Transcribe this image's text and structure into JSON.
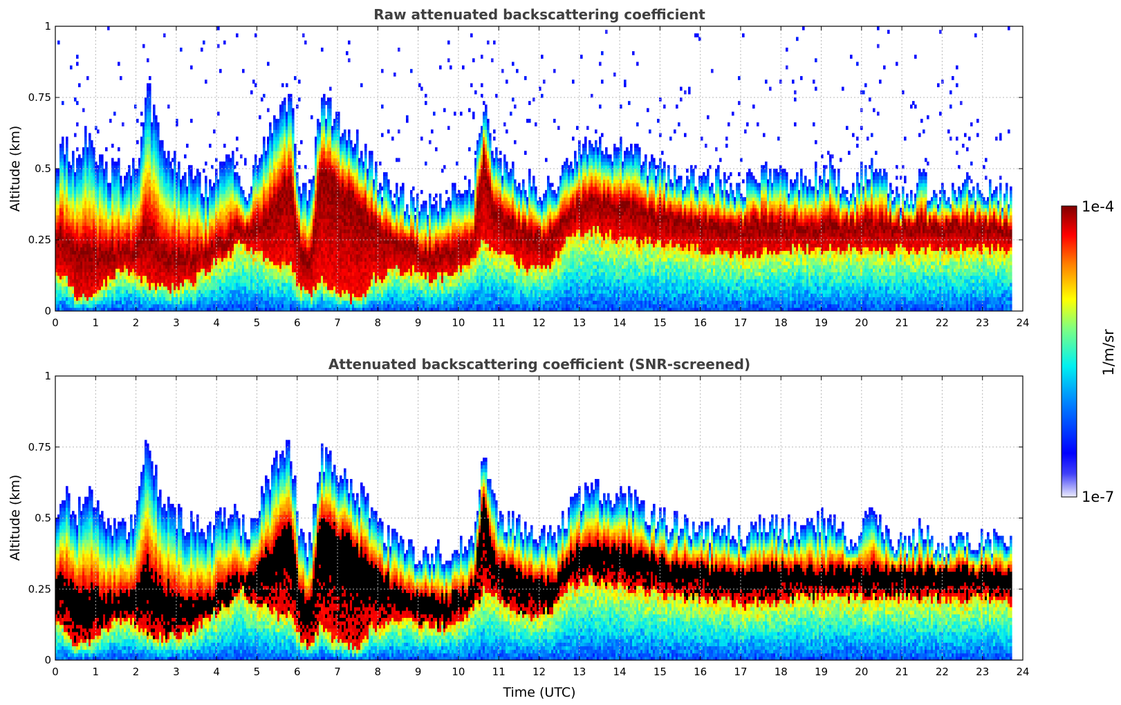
{
  "chart_data": [
    {
      "type": "heatmap",
      "title": "Raw attenuated backscattering coefficient",
      "xlabel": "",
      "ylabel": "Altitude (km)",
      "xlim": [
        0,
        24
      ],
      "ylim": [
        0,
        1
      ],
      "xticks": [
        "0",
        "1",
        "2",
        "3",
        "4",
        "5",
        "6",
        "7",
        "8",
        "9",
        "10",
        "11",
        "12",
        "13",
        "14",
        "15",
        "16",
        "17",
        "18",
        "19",
        "20",
        "21",
        "22",
        "23",
        "24"
      ],
      "yticks": [
        "0",
        "0.25",
        "0.5",
        "0.75",
        "1"
      ],
      "grid": true,
      "screened": false,
      "layer_top_km": [
        0.52,
        0.58,
        0.5,
        0.62,
        0.52,
        0.48,
        0.5,
        0.46,
        0.52,
        0.8,
        0.62,
        0.55,
        0.5,
        0.48,
        0.46,
        0.44,
        0.5,
        0.52,
        0.5,
        0.42,
        0.55,
        0.62,
        0.72,
        0.75,
        0.45,
        0.4,
        0.72,
        0.7,
        0.64,
        0.62,
        0.58,
        0.52,
        0.45,
        0.42,
        0.4,
        0.38,
        0.37,
        0.38,
        0.38,
        0.4,
        0.42,
        0.45,
        0.75,
        0.55,
        0.5,
        0.48,
        0.45,
        0.44,
        0.43,
        0.45,
        0.5,
        0.55,
        0.58,
        0.6,
        0.58,
        0.55,
        0.58,
        0.55,
        0.52,
        0.5,
        0.48,
        0.48,
        0.46,
        0.46,
        0.45,
        0.48,
        0.45,
        0.44,
        0.45,
        0.48,
        0.5,
        0.48,
        0.46,
        0.45,
        0.47,
        0.48,
        0.5,
        0.45,
        0.4,
        0.48,
        0.5,
        0.48,
        0.42,
        0.4,
        0.42,
        0.47,
        0.42,
        0.4,
        0.42,
        0.44,
        0.42,
        0.44,
        0.42,
        0.4,
        0.4,
        0.42
      ],
      "layer_mid_km": [
        0.26,
        0.25,
        0.22,
        0.2,
        0.2,
        0.18,
        0.2,
        0.2,
        0.22,
        0.28,
        0.22,
        0.2,
        0.18,
        0.18,
        0.18,
        0.2,
        0.22,
        0.25,
        0.28,
        0.28,
        0.3,
        0.33,
        0.4,
        0.45,
        0.22,
        0.18,
        0.48,
        0.45,
        0.42,
        0.4,
        0.35,
        0.3,
        0.28,
        0.25,
        0.22,
        0.22,
        0.2,
        0.2,
        0.2,
        0.2,
        0.22,
        0.24,
        0.55,
        0.35,
        0.32,
        0.3,
        0.28,
        0.26,
        0.25,
        0.27,
        0.32,
        0.36,
        0.38,
        0.38,
        0.38,
        0.37,
        0.37,
        0.36,
        0.35,
        0.34,
        0.33,
        0.32,
        0.31,
        0.31,
        0.3,
        0.3,
        0.3,
        0.3,
        0.3,
        0.3,
        0.3,
        0.3,
        0.3,
        0.3,
        0.3,
        0.3,
        0.3,
        0.3,
        0.3,
        0.3,
        0.3,
        0.3,
        0.3,
        0.3,
        0.3,
        0.3,
        0.3,
        0.3,
        0.3,
        0.3,
        0.3,
        0.3,
        0.3,
        0.3,
        0.28,
        0.26
      ],
      "layer_base_km": [
        0.15,
        0.12,
        0.05,
        0.05,
        0.08,
        0.1,
        0.14,
        0.14,
        0.12,
        0.1,
        0.08,
        0.08,
        0.08,
        0.1,
        0.12,
        0.15,
        0.18,
        0.2,
        0.25,
        0.22,
        0.2,
        0.18,
        0.15,
        0.18,
        0.08,
        0.05,
        0.12,
        0.08,
        0.06,
        0.05,
        0.04,
        0.12,
        0.12,
        0.15,
        0.14,
        0.14,
        0.12,
        0.12,
        0.12,
        0.13,
        0.16,
        0.18,
        0.25,
        0.22,
        0.2,
        0.18,
        0.16,
        0.15,
        0.16,
        0.18,
        0.25,
        0.27,
        0.28,
        0.28,
        0.27,
        0.26,
        0.25,
        0.25,
        0.24,
        0.24,
        0.23,
        0.23,
        0.22,
        0.22,
        0.21,
        0.21,
        0.21,
        0.2,
        0.2,
        0.2,
        0.21,
        0.21,
        0.21,
        0.22,
        0.22,
        0.22,
        0.22,
        0.22,
        0.22,
        0.22,
        0.22,
        0.22,
        0.22,
        0.22,
        0.22,
        0.22,
        0.22,
        0.22,
        0.22,
        0.22,
        0.22,
        0.22,
        0.22,
        0.22,
        0.2,
        0.18
      ]
    },
    {
      "type": "heatmap",
      "title": "Attenuated backscattering coefficient (SNR-screened)",
      "xlabel": "Time (UTC)",
      "ylabel": "Altitude (km)",
      "xlim": [
        0,
        24
      ],
      "ylim": [
        0,
        1
      ],
      "xticks": [
        "0",
        "1",
        "2",
        "3",
        "4",
        "5",
        "6",
        "7",
        "8",
        "9",
        "10",
        "11",
        "12",
        "13",
        "14",
        "15",
        "16",
        "17",
        "18",
        "19",
        "20",
        "21",
        "22",
        "23",
        "24"
      ],
      "yticks": [
        "0",
        "0.25",
        "0.5",
        "0.75",
        "1"
      ],
      "grid": true,
      "screened": true,
      "data_end_hour": 23.7
    }
  ],
  "colorbar": {
    "label": "1/m/sr",
    "min_label": "1e-7",
    "max_label": "1e-4",
    "scale": "log",
    "min": 1e-07,
    "max": 0.0001,
    "colormap": "jet",
    "low_color": "#e6e6fa",
    "high_color": "#800000"
  }
}
